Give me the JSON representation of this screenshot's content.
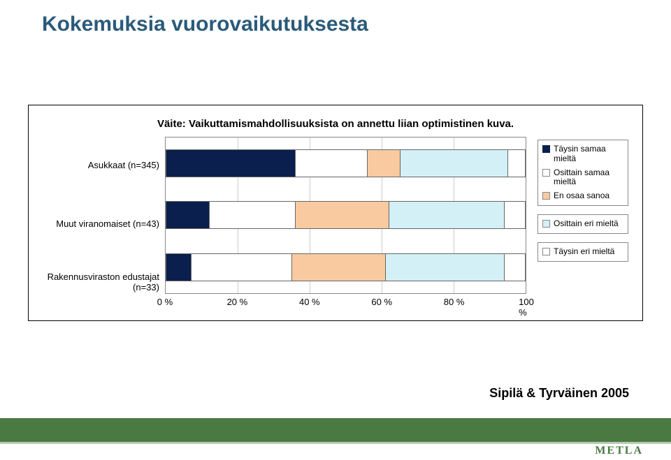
{
  "title": "Kokemuksia vuorovaikutuksesta",
  "chart": {
    "type": "stacked-bar-horizontal",
    "subtitle": "Väite: Vaikuttamismahdollisuuksista on annettu liian optimistinen kuva.",
    "background_color": "#ffffff",
    "border_color": "#000000",
    "grid_color": "#cccccc",
    "xlim": [
      0,
      100
    ],
    "xticks": [
      0,
      20,
      40,
      60,
      80,
      100
    ],
    "xtick_labels": [
      "0 %",
      "20 %",
      "40 %",
      "60 %",
      "80 %",
      "100 %"
    ],
    "categories": [
      {
        "label": "Asukkaat (n=345)",
        "values": [
          36,
          20,
          9,
          30,
          5
        ]
      },
      {
        "label": "Muut viranomaiset (n=43)",
        "values": [
          12,
          24,
          26,
          32,
          6
        ]
      },
      {
        "label": "Rakennusviraston edustajat\n(n=33)",
        "values": [
          7,
          28,
          26,
          33,
          6
        ]
      }
    ],
    "series": [
      {
        "name": "Täysin samaa mieltä",
        "color": "#0a1f4d",
        "swatch_border": "#0a1f4d"
      },
      {
        "name": "Osittain samaa mieltä",
        "color": "#ffffff",
        "swatch_border": "#888888"
      },
      {
        "name": "En osaa sanoa",
        "color": "#f9caa0",
        "swatch_border": "#888888"
      },
      {
        "name": "Osittain eri mieltä",
        "color": "#d4f0f7",
        "swatch_border": "#888888"
      },
      {
        "name": "Täysin eri mieltä",
        "color": "#ffffff",
        "swatch_border": "#888888"
      }
    ],
    "legend_group1": [
      0,
      1,
      2
    ],
    "legend_group2": [
      3
    ],
    "legend_group3": [
      4
    ],
    "label_fontsize": 13,
    "title_fontsize": 15
  },
  "source": "Sipilä & Tyrväinen 2005",
  "footer": {
    "bar_color": "#4a7a42",
    "logo": "METLA",
    "logo_color": "#4a7a42"
  }
}
